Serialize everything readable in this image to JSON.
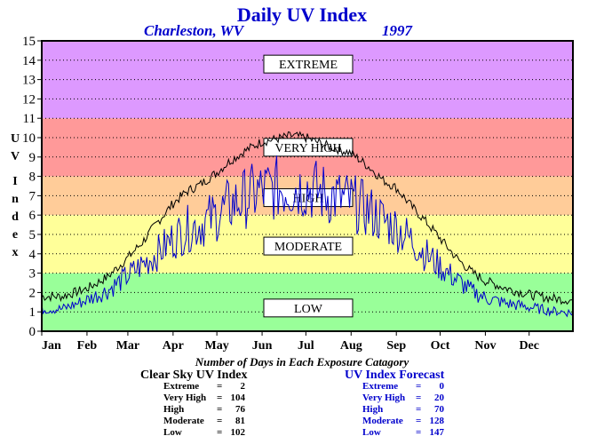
{
  "header": {
    "title": "Daily UV Index",
    "location": "Charleston, WV",
    "year": "1997"
  },
  "caption": "Number of Days in Each Exposure Catagory",
  "stats": {
    "clear_sky": {
      "title": "Clear Sky UV Index",
      "rows": [
        {
          "label": "Extreme",
          "sep": "=",
          "value": "2"
        },
        {
          "label": "Very High",
          "sep": "=",
          "value": "104"
        },
        {
          "label": "High",
          "sep": "=",
          "value": "76"
        },
        {
          "label": "Moderate",
          "sep": "=",
          "value": "81"
        },
        {
          "label": "Low",
          "sep": "=",
          "value": "102"
        }
      ]
    },
    "forecast": {
      "title": "UV Index Forecast",
      "rows": [
        {
          "label": "Extreme",
          "sep": "=",
          "value": "0"
        },
        {
          "label": "Very High",
          "sep": "=",
          "value": "20"
        },
        {
          "label": "High",
          "sep": "=",
          "value": "70"
        },
        {
          "label": "Moderate",
          "sep": "=",
          "value": "128"
        },
        {
          "label": "Low",
          "sep": "=",
          "value": "147"
        }
      ]
    }
  },
  "chart_data": {
    "type": "line",
    "title": "Daily UV Index",
    "ylabel": "UV Index",
    "ylim": [
      0,
      15
    ],
    "yticks": [
      0,
      1,
      2,
      3,
      4,
      5,
      6,
      7,
      8,
      9,
      10,
      11,
      12,
      13,
      14,
      15
    ],
    "xlim": [
      1,
      365
    ],
    "xticks": [
      {
        "label": "Jan",
        "day": 1
      },
      {
        "label": "Feb",
        "day": 32
      },
      {
        "label": "Mar",
        "day": 60
      },
      {
        "label": "Apr",
        "day": 91
      },
      {
        "label": "May",
        "day": 121
      },
      {
        "label": "Jun",
        "day": 152
      },
      {
        "label": "Jul",
        "day": 182
      },
      {
        "label": "Aug",
        "day": 213
      },
      {
        "label": "Sep",
        "day": 244
      },
      {
        "label": "Oct",
        "day": 274
      },
      {
        "label": "Nov",
        "day": 305
      },
      {
        "label": "Dec",
        "day": 335
      }
    ],
    "grid": "horizontal dotted",
    "bands": [
      {
        "label": "LOW",
        "from": 0,
        "to": 3,
        "color": "#99ff99"
      },
      {
        "label": "MODERATE",
        "from": 3,
        "to": 6,
        "color": "#ffff99"
      },
      {
        "label": "HIGH",
        "from": 6,
        "to": 8,
        "color": "#ffcc99"
      },
      {
        "label": "VERY HIGH",
        "from": 8,
        "to": 11,
        "color": "#ff9999"
      },
      {
        "label": "EXTREME",
        "from": 11,
        "to": 15,
        "color": "#dd99ff"
      }
    ],
    "series": [
      {
        "name": "Clear Sky UV Index",
        "color": "#000000",
        "points": [
          [
            1,
            1.8
          ],
          [
            15,
            1.8
          ],
          [
            32,
            2.2
          ],
          [
            46,
            2.8
          ],
          [
            60,
            3.8
          ],
          [
            70,
            4.6
          ],
          [
            80,
            5.6
          ],
          [
            91,
            6.6
          ],
          [
            100,
            7.2
          ],
          [
            110,
            7.6
          ],
          [
            121,
            8.2
          ],
          [
            130,
            8.8
          ],
          [
            140,
            9.3
          ],
          [
            152,
            9.8
          ],
          [
            160,
            9.9
          ],
          [
            172,
            10.1
          ],
          [
            182,
            10.0
          ],
          [
            192,
            9.7
          ],
          [
            200,
            9.5
          ],
          [
            213,
            9.2
          ],
          [
            225,
            8.5
          ],
          [
            235,
            7.8
          ],
          [
            244,
            7.4
          ],
          [
            255,
            6.4
          ],
          [
            265,
            5.6
          ],
          [
            274,
            4.8
          ],
          [
            285,
            3.8
          ],
          [
            295,
            3.1
          ],
          [
            305,
            2.6
          ],
          [
            320,
            2.2
          ],
          [
            335,
            1.9
          ],
          [
            350,
            1.7
          ],
          [
            365,
            1.6
          ]
        ]
      },
      {
        "name": "UV Index Forecast",
        "color": "#0000cc",
        "points": [
          [
            1,
            1.2
          ],
          [
            15,
            1.2
          ],
          [
            32,
            1.7
          ],
          [
            46,
            2.2
          ],
          [
            60,
            3.0
          ],
          [
            70,
            3.6
          ],
          [
            80,
            4.2
          ],
          [
            91,
            5.0
          ],
          [
            100,
            5.5
          ],
          [
            110,
            5.8
          ],
          [
            121,
            6.3
          ],
          [
            130,
            6.8
          ],
          [
            140,
            7.2
          ],
          [
            152,
            7.6
          ],
          [
            160,
            7.7
          ],
          [
            172,
            7.8
          ],
          [
            182,
            7.8
          ],
          [
            192,
            7.5
          ],
          [
            200,
            7.3
          ],
          [
            213,
            7.0
          ],
          [
            225,
            6.5
          ],
          [
            235,
            6.0
          ],
          [
            244,
            5.6
          ],
          [
            255,
            4.9
          ],
          [
            265,
            4.1
          ],
          [
            274,
            3.5
          ],
          [
            285,
            2.8
          ],
          [
            295,
            2.2
          ],
          [
            305,
            1.8
          ],
          [
            320,
            1.5
          ],
          [
            335,
            1.3
          ],
          [
            350,
            1.1
          ],
          [
            365,
            1.0
          ]
        ]
      }
    ]
  }
}
